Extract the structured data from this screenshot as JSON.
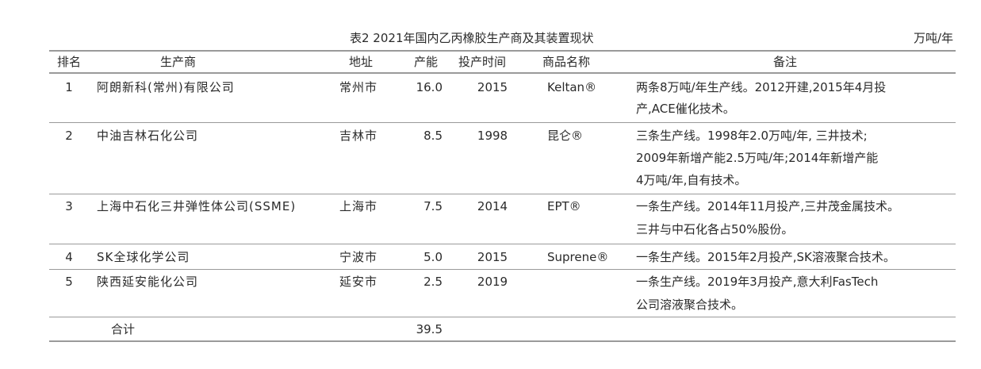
{
  "caption": {
    "title": "表2  2021年国内乙丙橡胶生产商及其装置现状",
    "unit": "万吨/年"
  },
  "columns": [
    "排名",
    "生产商",
    "地址",
    "产能",
    "投产时间",
    "商品名称",
    "备注"
  ],
  "rows": [
    {
      "rank": "1",
      "producer": "阿朗新科(常州)有限公司",
      "address": "常州市",
      "capacity": "16.0",
      "year": "2015",
      "brand": "Keltan®",
      "notes": [
        "两条8万吨/年生产线。2012开建,2015年4月投",
        "产,ACE催化技术。"
      ]
    },
    {
      "rank": "2",
      "producer": "中油吉林石化公司",
      "address": "吉林市",
      "capacity": "8.5",
      "year": "1998",
      "brand": "昆仑®",
      "notes": [
        "三条生产线。1998年2.0万吨/年, 三井技术;",
        "2009年新增产能2.5万吨/年;2014年新增产能",
        "4万吨/年,自有技术。"
      ]
    },
    {
      "rank": "3",
      "producer": "上海中石化三井弹性体公司(SSME)",
      "address": "上海市",
      "capacity": "7.5",
      "year": "2014",
      "brand": "EPT®",
      "notes": [
        "一条生产线。2014年11月投产,三井茂金属技术。",
        "三井与中石化各占50%股份。"
      ]
    },
    {
      "rank": "4",
      "producer": "SK全球化学公司",
      "address": "宁波市",
      "capacity": "5.0",
      "year": "2015",
      "brand": "Suprene®",
      "notes": [
        "一条生产线。2015年2月投产,SK溶液聚合技术。"
      ]
    },
    {
      "rank": "5",
      "producer": "陕西延安能化公司",
      "address": "延安市",
      "capacity": "2.5",
      "year": "2019",
      "brand": "",
      "notes": [
        "一条生产线。2019年3月投产,意大利FasTech",
        "公司溶液聚合技术。"
      ]
    }
  ],
  "total": {
    "label": "合计",
    "capacity": "39.5"
  }
}
